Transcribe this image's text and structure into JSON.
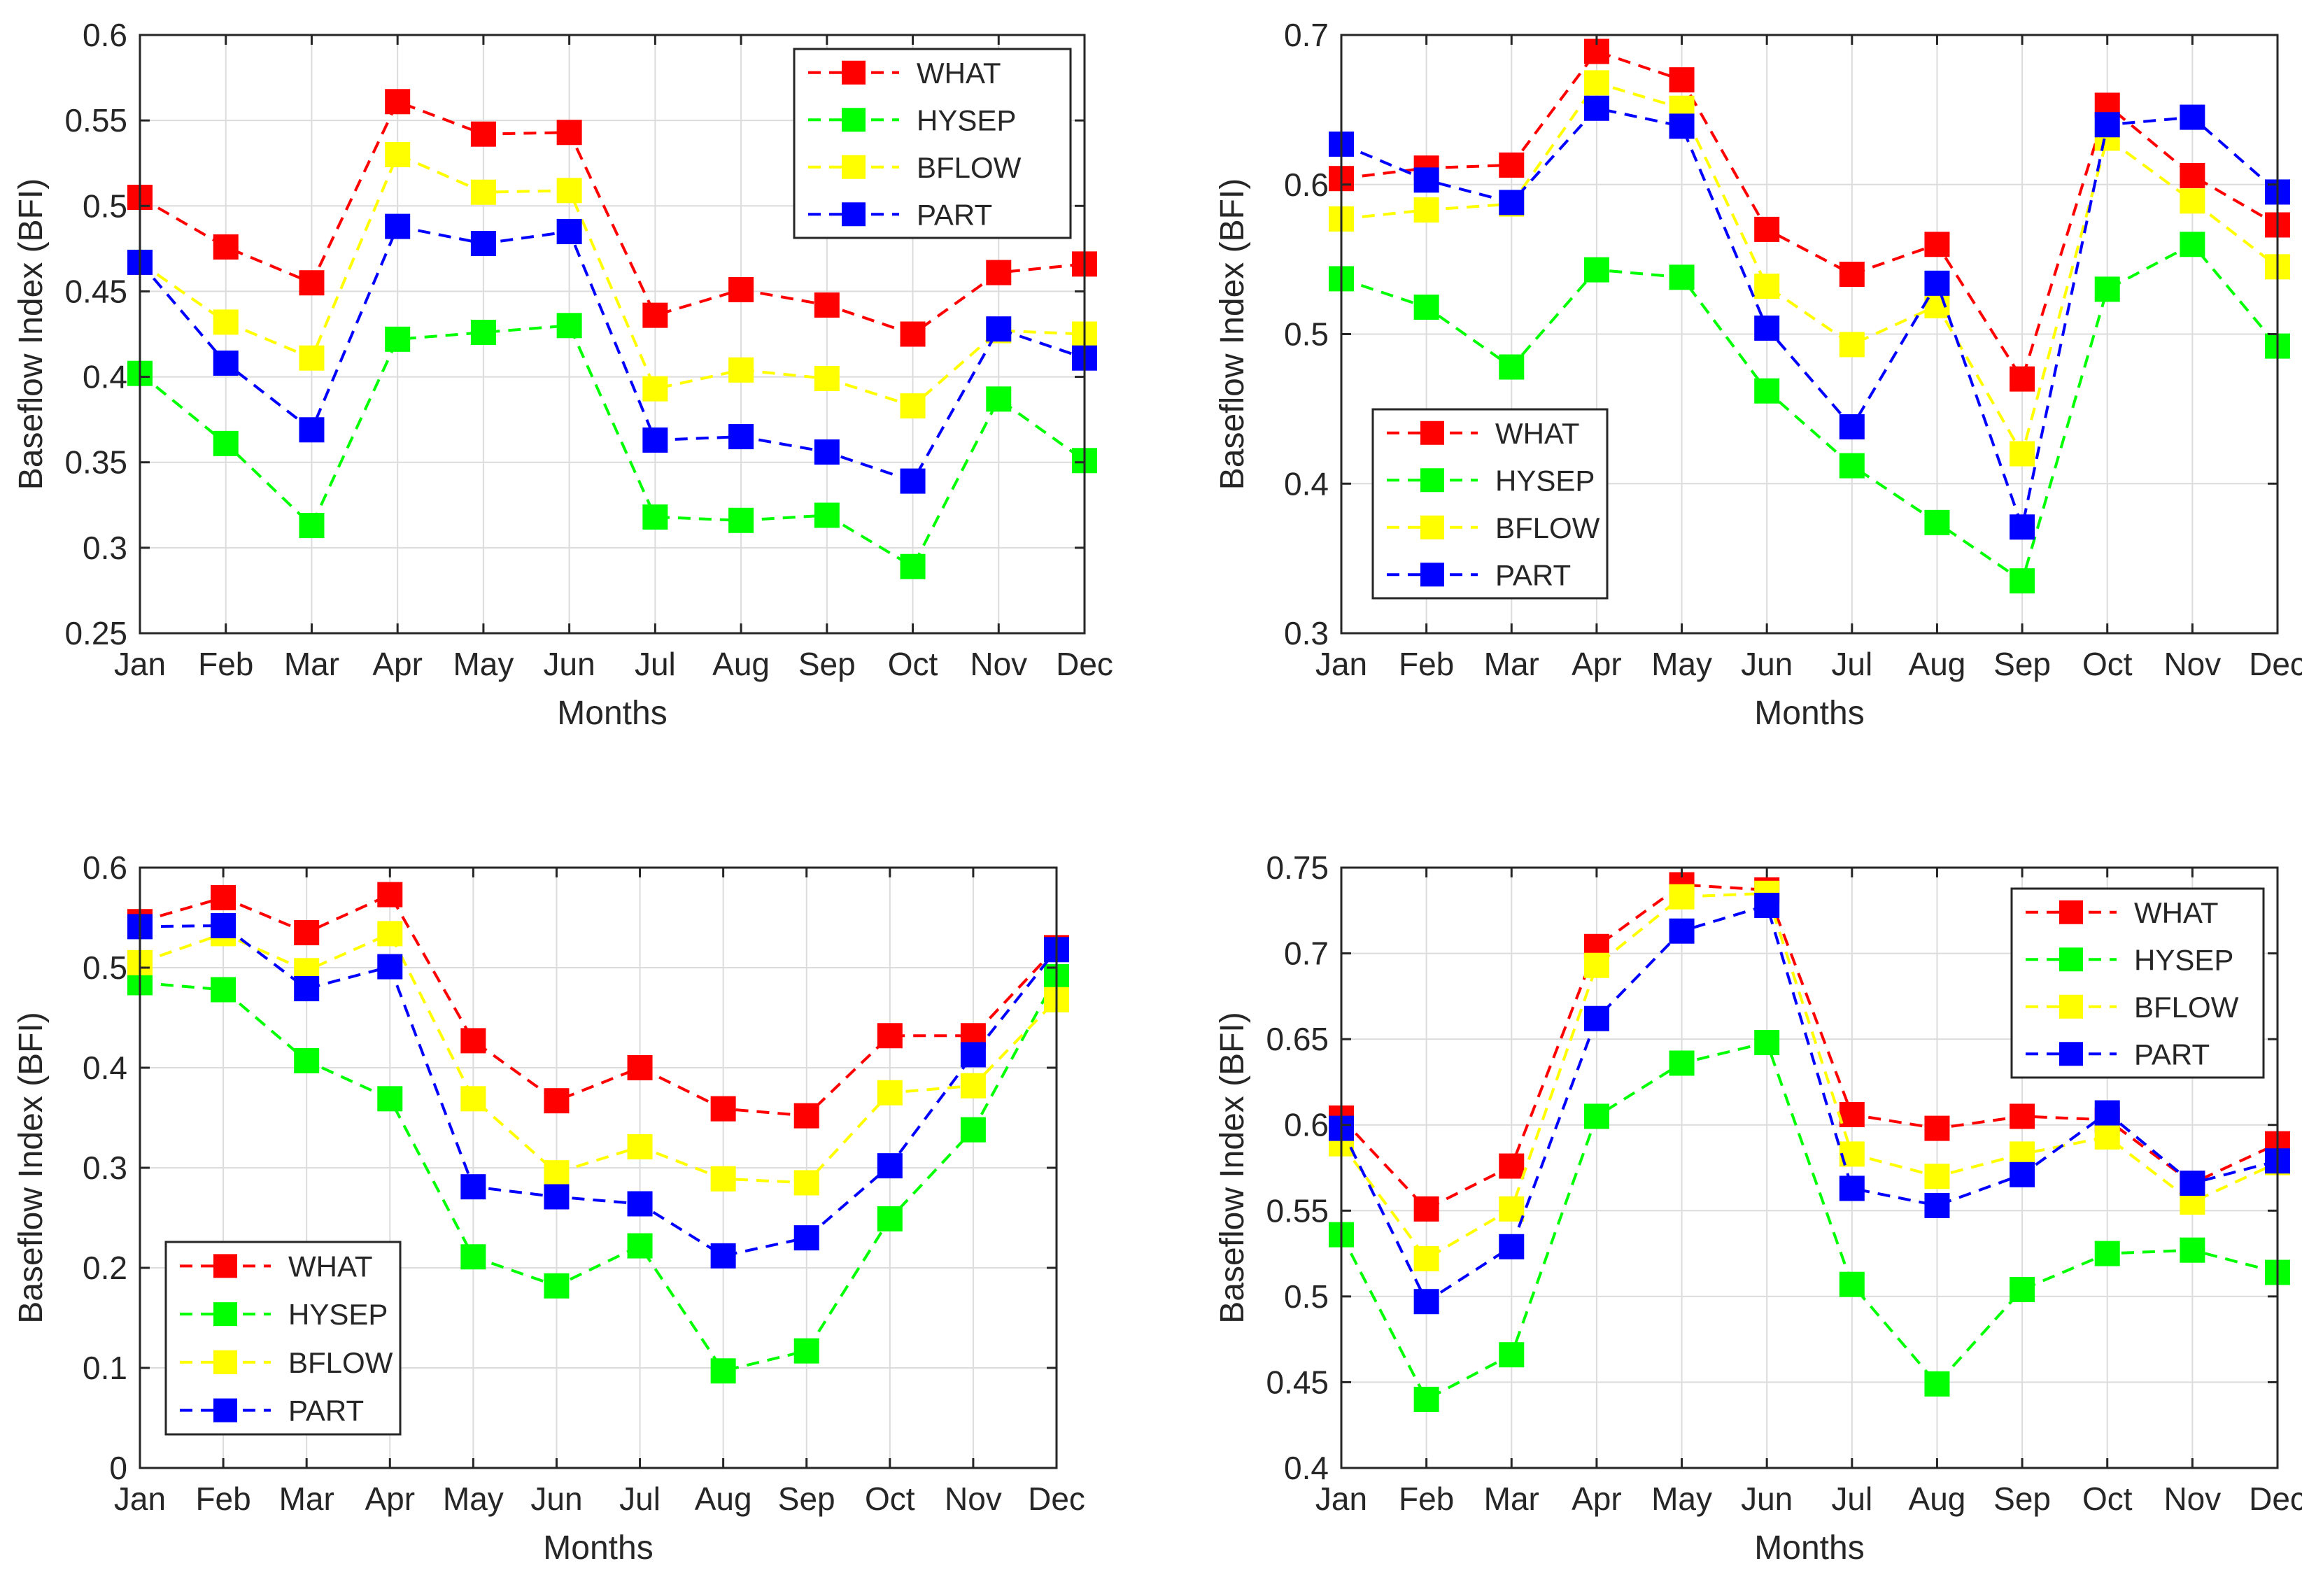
{
  "chart_data": [
    {
      "type": "line",
      "panel": "top-left",
      "title": "",
      "xlabel": "Months",
      "ylabel": "Baseflow Index (BFI)",
      "categories": [
        "Jan",
        "Feb",
        "Mar",
        "Apr",
        "May",
        "Jun",
        "Jul",
        "Aug",
        "Sep",
        "Oct",
        "Nov",
        "Dec"
      ],
      "ylim": [
        0.25,
        0.6
      ],
      "yticks": [
        0.25,
        0.3,
        0.35,
        0.4,
        0.45,
        0.5,
        0.55,
        0.6
      ],
      "ytick_labels": [
        "0.25",
        "0.3",
        "0.35",
        "0.4",
        "0.45",
        "0.5",
        "0.55",
        "0.6"
      ],
      "grid": true,
      "legend_position": "top-right",
      "series": [
        {
          "name": "WHAT",
          "color": "#ff0000",
          "values": [
            0.505,
            0.476,
            0.455,
            0.561,
            0.542,
            0.543,
            0.436,
            0.451,
            0.442,
            0.425,
            0.461,
            0.466
          ]
        },
        {
          "name": "HYSEP",
          "color": "#00ff00",
          "values": [
            0.402,
            0.361,
            0.313,
            0.422,
            0.426,
            0.43,
            0.318,
            0.316,
            0.319,
            0.289,
            0.387,
            0.351
          ]
        },
        {
          "name": "BFLOW",
          "color": "#ffff00",
          "values": [
            0.467,
            0.432,
            0.411,
            0.53,
            0.508,
            0.509,
            0.393,
            0.404,
            0.399,
            0.383,
            0.427,
            0.425
          ]
        },
        {
          "name": "PART",
          "color": "#0000ff",
          "values": [
            0.467,
            0.408,
            0.369,
            0.488,
            0.478,
            0.485,
            0.363,
            0.365,
            0.356,
            0.339,
            0.428,
            0.411
          ]
        }
      ]
    },
    {
      "type": "line",
      "panel": "top-right",
      "title": "",
      "xlabel": "Months",
      "ylabel": "Baseflow Index (BFI)",
      "categories": [
        "Jan",
        "Feb",
        "Mar",
        "Apr",
        "May",
        "Jun",
        "Jul",
        "Aug",
        "Sep",
        "Oct",
        "Nov",
        "Dec"
      ],
      "ylim": [
        0.3,
        0.7
      ],
      "yticks": [
        0.3,
        0.4,
        0.5,
        0.6,
        0.7
      ],
      "ytick_labels": [
        "0.3",
        "0.4",
        "0.5",
        "0.6",
        "0.7"
      ],
      "grid": true,
      "legend_position": "bottom-left",
      "series": [
        {
          "name": "WHAT",
          "color": "#ff0000",
          "values": [
            0.604,
            0.611,
            0.613,
            0.689,
            0.67,
            0.57,
            0.54,
            0.56,
            0.47,
            0.653,
            0.606,
            0.573
          ]
        },
        {
          "name": "HYSEP",
          "color": "#00ff00",
          "values": [
            0.537,
            0.518,
            0.478,
            0.543,
            0.538,
            0.462,
            0.412,
            0.374,
            0.335,
            0.53,
            0.56,
            0.492
          ]
        },
        {
          "name": "BFLOW",
          "color": "#ffff00",
          "values": [
            0.577,
            0.583,
            0.587,
            0.668,
            0.651,
            0.532,
            0.493,
            0.519,
            0.42,
            0.631,
            0.589,
            0.545
          ]
        },
        {
          "name": "PART",
          "color": "#0000ff",
          "values": [
            0.627,
            0.603,
            0.588,
            0.651,
            0.639,
            0.504,
            0.438,
            0.534,
            0.371,
            0.64,
            0.645,
            0.595
          ]
        }
      ]
    },
    {
      "type": "line",
      "panel": "bottom-left",
      "title": "",
      "xlabel": "Months",
      "ylabel": "Baseflow Index (BFI)",
      "categories": [
        "Jan",
        "Feb",
        "Mar",
        "Apr",
        "May",
        "Jun",
        "Jul",
        "Aug",
        "Sep",
        "Oct",
        "Nov",
        "Dec"
      ],
      "ylim": [
        0,
        0.6
      ],
      "yticks": [
        0,
        0.1,
        0.2,
        0.3,
        0.4,
        0.5,
        0.6
      ],
      "ytick_labels": [
        "0",
        "0.1",
        "0.2",
        "0.3",
        "0.4",
        "0.5",
        "0.6"
      ],
      "grid": true,
      "legend_position": "bottom-left",
      "series": [
        {
          "name": "WHAT",
          "color": "#ff0000",
          "values": [
            0.546,
            0.57,
            0.535,
            0.573,
            0.427,
            0.367,
            0.4,
            0.359,
            0.352,
            0.432,
            0.432,
            0.52
          ]
        },
        {
          "name": "HYSEP",
          "color": "#00ff00",
          "values": [
            0.485,
            0.478,
            0.407,
            0.369,
            0.211,
            0.182,
            0.222,
            0.097,
            0.117,
            0.249,
            0.338,
            0.491
          ]
        },
        {
          "name": "BFLOW",
          "color": "#ffff00",
          "values": [
            0.505,
            0.534,
            0.497,
            0.534,
            0.369,
            0.295,
            0.321,
            0.289,
            0.285,
            0.375,
            0.382,
            0.468
          ]
        },
        {
          "name": "PART",
          "color": "#0000ff",
          "values": [
            0.541,
            0.542,
            0.479,
            0.501,
            0.281,
            0.271,
            0.264,
            0.212,
            0.23,
            0.302,
            0.413,
            0.518
          ]
        }
      ]
    },
    {
      "type": "line",
      "panel": "bottom-right",
      "title": "",
      "xlabel": "Months",
      "ylabel": "Baseflow Index (BFI)",
      "categories": [
        "Jan",
        "Feb",
        "Mar",
        "Apr",
        "May",
        "Jun",
        "Jul",
        "Aug",
        "Sep",
        "Oct",
        "Nov",
        "Dec"
      ],
      "ylim": [
        0.4,
        0.75
      ],
      "yticks": [
        0.4,
        0.45,
        0.5,
        0.55,
        0.6,
        0.65,
        0.7,
        0.75
      ],
      "ytick_labels": [
        "0.4",
        "0.45",
        "0.5",
        "0.55",
        "0.6",
        "0.65",
        "0.7",
        "0.75"
      ],
      "grid": true,
      "legend_position": "top-right",
      "series": [
        {
          "name": "WHAT",
          "color": "#ff0000",
          "values": [
            0.604,
            0.551,
            0.576,
            0.704,
            0.74,
            0.737,
            0.606,
            0.598,
            0.605,
            0.603,
            0.566,
            0.589
          ]
        },
        {
          "name": "HYSEP",
          "color": "#00ff00",
          "values": [
            0.536,
            0.44,
            0.466,
            0.605,
            0.636,
            0.648,
            0.507,
            0.449,
            0.504,
            0.525,
            0.527,
            0.514
          ]
        },
        {
          "name": "BFLOW",
          "color": "#ffff00",
          "values": [
            0.589,
            0.522,
            0.551,
            0.693,
            0.733,
            0.735,
            0.583,
            0.57,
            0.583,
            0.593,
            0.555,
            0.578
          ]
        },
        {
          "name": "PART",
          "color": "#0000ff",
          "values": [
            0.598,
            0.497,
            0.529,
            0.662,
            0.713,
            0.728,
            0.563,
            0.553,
            0.571,
            0.607,
            0.566,
            0.579
          ]
        }
      ]
    }
  ]
}
